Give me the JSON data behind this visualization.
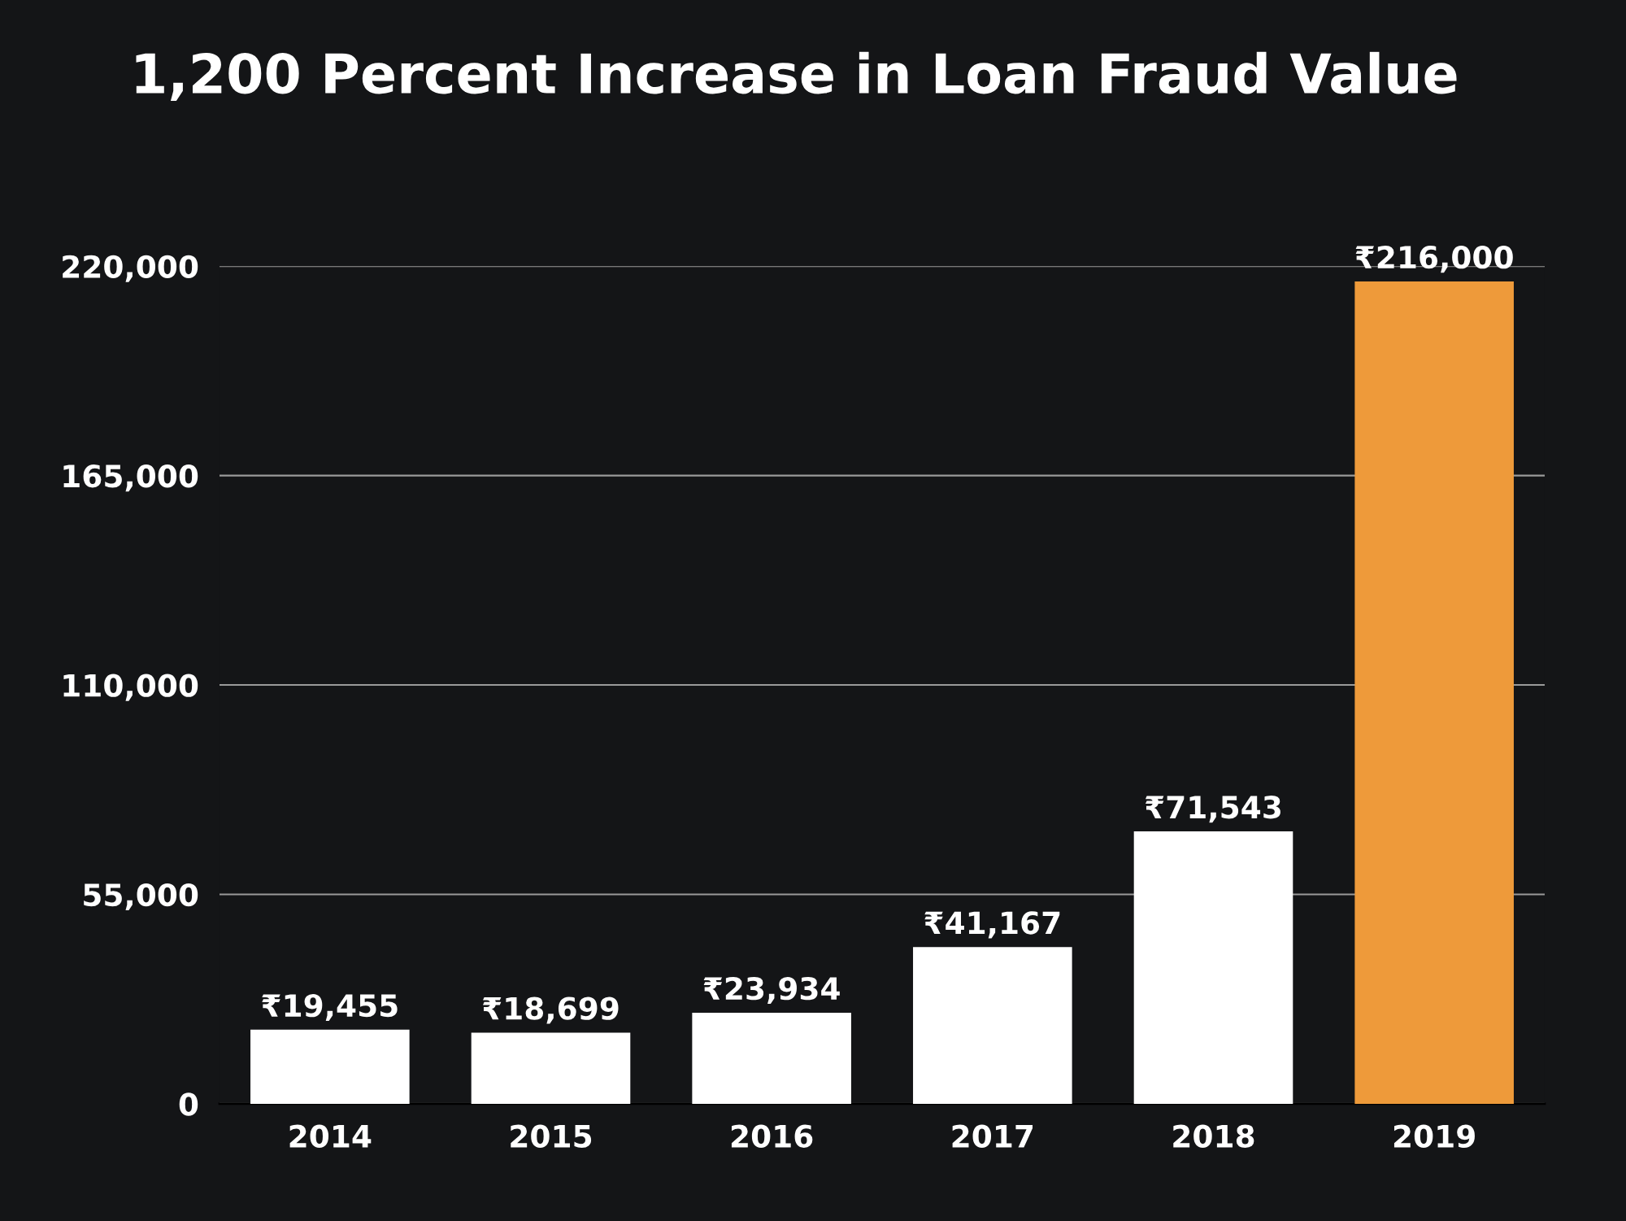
{
  "chart_data": {
    "type": "bar",
    "title": "1,200 Percent Increase in Loan Fraud Value",
    "categories": [
      "2014",
      "2015",
      "2016",
      "2017",
      "2018",
      "2019"
    ],
    "values": [
      19455,
      18699,
      23934,
      41167,
      71543,
      216000
    ],
    "colors": [
      "#ffffff",
      "#ffffff",
      "#ffffff",
      "#ffffff",
      "#ffffff",
      "#ee9a3a"
    ],
    "value_labels": [
      "₹19,455",
      "₹18,699",
      "₹23,934",
      "₹41,167",
      "₹71,543",
      "₹216,000"
    ],
    "ylim": [
      0,
      220000
    ],
    "yticks": [
      0,
      {
        "value": 55000,
        "label": "55,000"
      },
      {
        "value": 110000,
        "label": "110,000"
      },
      {
        "value": 165000,
        "label": "165,000"
      },
      {
        "value": 220000,
        "label": "220,000"
      }
    ],
    "grid": "y"
  }
}
